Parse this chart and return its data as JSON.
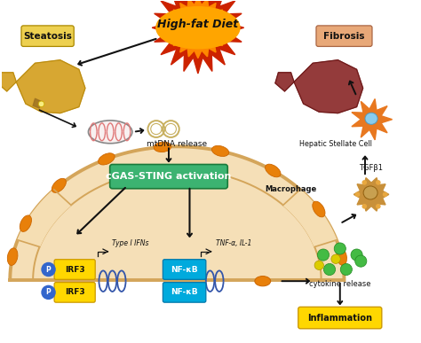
{
  "bg_color": "#ffffff",
  "figsize": [
    4.74,
    3.87
  ],
  "dpi": 100,
  "xlim": [
    0,
    10
  ],
  "ylim": [
    0,
    8.2
  ],
  "labels": {
    "high_fat_diet": "High-fat Diet",
    "steatosis": "Steatosis",
    "fibrosis": "Fibrosis",
    "mtdna": "mtDNA release",
    "cgas_sting": "cGAS-STING activation",
    "type1_ifns": "Type I IFNs",
    "tnf_il1": "TNF-α, IL-1",
    "irf3": "IRF3",
    "nfkb": "NF-κB",
    "hepatic_stellate": "Hepatic Stellate Cell",
    "tgfb1": "TGFβ1",
    "macrophage": "Macrophage",
    "cytokine": "cytokine release",
    "inflammation": "Inflammation",
    "p": "P"
  },
  "colors": {
    "high_fat_bg": "#FFA500",
    "high_fat_spike": "#CC2200",
    "steatosis_box": "#EDD050",
    "fibrosis_box": "#E8A878",
    "cgas_sting_box": "#3CB371",
    "cgas_sting_text": "#ffffff",
    "irf3_box": "#FFD700",
    "irf3_border": "#CC9900",
    "nfkb_box": "#00AADD",
    "nfkb_border": "#0077AA",
    "p_circle": "#3366CC",
    "inflammation_box": "#FFD700",
    "inflammation_border": "#CC9900",
    "cell_fill": "#F5DEB3",
    "cell_border": "#D4A55A",
    "orange_oval": "#E8800A",
    "dna_color": "#3355AA",
    "arrow_color": "#111111",
    "mito_fill": "#F8F0F0",
    "mito_border": "#888888",
    "mito_cristae": "#E07878",
    "mtdna_ring": "#C8B060",
    "green_dots": "#44BB44",
    "yellow_dots": "#DDBB00",
    "stellate_color": "#E87820",
    "stellate_nucleus": "#88CCEE",
    "macrophage_fill": "#C8903A",
    "macrophage_nucleus": "#C07820",
    "liver_fatty": "#D4A020",
    "liver_fatty_lobe": "#B88A10",
    "liver_fibrosis": "#8B2A2A",
    "liver_fibrosis_lobe": "#6A1A1A",
    "text_dark": "#111111",
    "gray_light": "#CCCCCC"
  }
}
